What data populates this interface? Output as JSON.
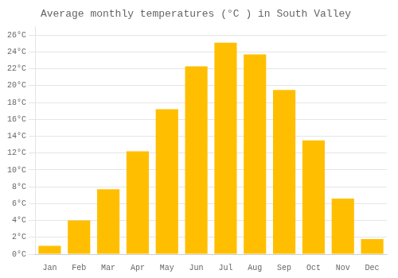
{
  "chart_data": {
    "type": "bar",
    "title": "Average monthly temperatures (°C ) in South Valley",
    "categories": [
      "Jan",
      "Feb",
      "Mar",
      "Apr",
      "May",
      "Jun",
      "Jul",
      "Aug",
      "Sep",
      "Oct",
      "Nov",
      "Dec"
    ],
    "values": [
      1.0,
      4.0,
      7.7,
      12.2,
      17.2,
      22.3,
      25.1,
      23.7,
      19.5,
      13.5,
      6.6,
      1.8
    ],
    "color": "#FFBF00",
    "ylim": [
      0,
      27
    ],
    "yticks": [
      {
        "value": 0,
        "label": "0°C"
      },
      {
        "value": 2,
        "label": "2°C"
      },
      {
        "value": 4,
        "label": "4°C"
      },
      {
        "value": 6,
        "label": "6°C"
      },
      {
        "value": 8,
        "label": "8°C"
      },
      {
        "value": 10,
        "label": "10°C"
      },
      {
        "value": 12,
        "label": "12°C"
      },
      {
        "value": 14,
        "label": "14°C"
      },
      {
        "value": 16,
        "label": "16°C"
      },
      {
        "value": 18,
        "label": "18°C"
      },
      {
        "value": 20,
        "label": "20°C"
      },
      {
        "value": 22,
        "label": "22°C"
      },
      {
        "value": 24,
        "label": "24°C"
      },
      {
        "value": 26,
        "label": "26°C"
      }
    ],
    "grid": true
  }
}
